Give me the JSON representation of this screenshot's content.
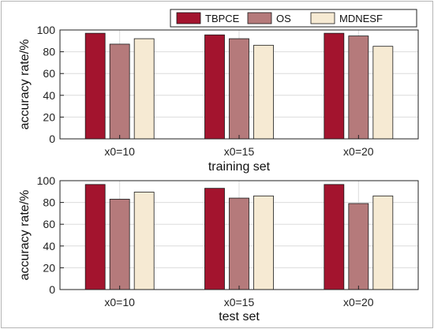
{
  "colors": {
    "series": [
      "#a3142e",
      "#b57a7b",
      "#f6ead3"
    ],
    "axis": "#222222",
    "grid": "#dcdcdc",
    "frame": "#b5b5b5"
  },
  "legend": {
    "placement": "top-right",
    "items": [
      "TBPCE",
      "OS",
      "MDNESF"
    ]
  },
  "chart_data": [
    {
      "type": "bar",
      "title": "",
      "xlabel": "training set",
      "ylabel": "accuracy rate/%",
      "ylim": [
        0,
        100
      ],
      "yticks": [
        0,
        20,
        40,
        60,
        80,
        100
      ],
      "grid": true,
      "categories": [
        "x0=10",
        "x0=15",
        "x0=20"
      ],
      "series": [
        {
          "name": "TBPCE",
          "values": [
            97,
            95.5,
            97
          ]
        },
        {
          "name": "OS",
          "values": [
            87,
            92,
            94.5
          ]
        },
        {
          "name": "MDNESF",
          "values": [
            92,
            86,
            85
          ]
        }
      ]
    },
    {
      "type": "bar",
      "title": "",
      "xlabel": "test set",
      "ylabel": "accuracy rate/%",
      "ylim": [
        0,
        100
      ],
      "yticks": [
        0,
        20,
        40,
        60,
        80,
        100
      ],
      "grid": true,
      "categories": [
        "x0=10",
        "x0=15",
        "x0=20"
      ],
      "series": [
        {
          "name": "TBPCE",
          "values": [
            96.5,
            93,
            96.5
          ]
        },
        {
          "name": "OS",
          "values": [
            83,
            84,
            79
          ]
        },
        {
          "name": "MDNESF",
          "values": [
            89.5,
            86,
            86
          ]
        }
      ]
    }
  ]
}
